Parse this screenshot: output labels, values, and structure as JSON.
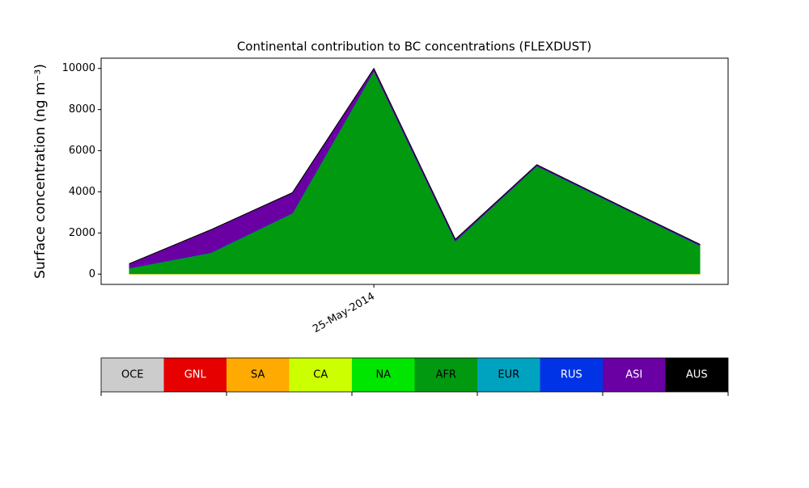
{
  "chart_data": {
    "type": "stackedarea",
    "title": "Continental contribution to BC concentrations (FLEXDUST)",
    "y_label": "Surface concentration (ng m⁻³)",
    "categories": [
      null,
      null,
      null,
      "25-May-2014",
      null,
      null,
      null,
      null
    ],
    "series": [
      {
        "name": "OCE",
        "color": "#cccccc",
        "values": [
          5,
          5,
          5,
          5,
          5,
          5,
          5,
          5
        ]
      },
      {
        "name": "GNL",
        "color": "#e60000",
        "values": [
          2,
          2,
          2,
          2,
          2,
          2,
          2,
          2
        ]
      },
      {
        "name": "SA",
        "color": "#ffaa00",
        "values": [
          3,
          3,
          3,
          3,
          3,
          3,
          3,
          3
        ]
      },
      {
        "name": "CA",
        "color": "#ccff00",
        "values": [
          15,
          15,
          15,
          15,
          15,
          15,
          15,
          15
        ]
      },
      {
        "name": "NA",
        "color": "#00e600",
        "values": [
          5,
          5,
          5,
          5,
          5,
          5,
          5,
          5
        ]
      },
      {
        "name": "AFR",
        "color": "#009910",
        "values": [
          260,
          1010,
          2930,
          9850,
          1570,
          5230,
          3290,
          1360
        ]
      },
      {
        "name": "EUR",
        "color": "#00a3bf",
        "values": [
          5,
          5,
          5,
          5,
          5,
          5,
          5,
          5
        ]
      },
      {
        "name": "RUS",
        "color": "#0033e6",
        "values": [
          10,
          10,
          10,
          10,
          10,
          10,
          10,
          10
        ]
      },
      {
        "name": "ASI",
        "color": "#6a00a3",
        "values": [
          200,
          1100,
          980,
          100,
          70,
          40,
          30,
          40
        ]
      },
      {
        "name": "AUS",
        "color": "#000000",
        "values": [
          5,
          5,
          5,
          5,
          5,
          5,
          5,
          5
        ]
      }
    ],
    "ylim": [
      -500,
      10500
    ],
    "yticks": [
      0,
      2000,
      4000,
      6000,
      8000,
      10000
    ]
  }
}
